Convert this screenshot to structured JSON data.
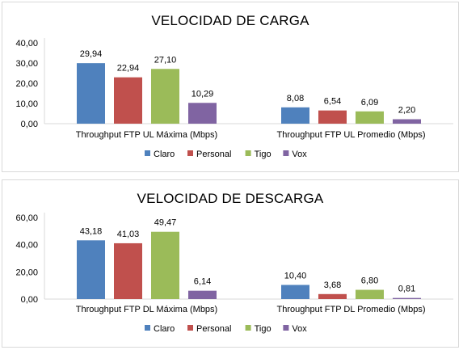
{
  "legend_colors": {
    "Claro": "#4f81bd",
    "Personal": "#c0504d",
    "Tigo": "#9bbb59",
    "Vox": "#8064a2"
  },
  "chart_data": [
    {
      "type": "bar",
      "title": "VELOCIDAD DE CARGA",
      "categories": [
        "Throughput FTP UL Máxima (Mbps)",
        "Throughput FTP UL Promedio (Mbps)"
      ],
      "series": [
        {
          "name": "Claro",
          "values": [
            29.94,
            8.08
          ],
          "labels": [
            "29,94",
            "8,08"
          ]
        },
        {
          "name": "Personal",
          "values": [
            22.94,
            6.54
          ],
          "labels": [
            "22,94",
            "6,54"
          ]
        },
        {
          "name": "Tigo",
          "values": [
            27.1,
            6.09
          ],
          "labels": [
            "27,10",
            "6,09"
          ]
        },
        {
          "name": "Vox",
          "values": [
            10.29,
            2.2
          ],
          "labels": [
            "10,29",
            "2,20"
          ]
        }
      ],
      "ylim": [
        0,
        40
      ],
      "yticks": [
        "0,00",
        "10,00",
        "20,00",
        "30,00",
        "40,00"
      ],
      "ytick_values": [
        0,
        10,
        20,
        30,
        40
      ],
      "legend_position": "bottom",
      "grid": false
    },
    {
      "type": "bar",
      "title": "VELOCIDAD DE DESCARGA",
      "categories": [
        "Throughput FTP DL Máxima (Mbps)",
        "Throughput FTP DL Promedio (Mbps)"
      ],
      "series": [
        {
          "name": "Claro",
          "values": [
            43.18,
            10.4
          ],
          "labels": [
            "43,18",
            "10,40"
          ]
        },
        {
          "name": "Personal",
          "values": [
            41.03,
            3.68
          ],
          "labels": [
            "41,03",
            "3,68"
          ]
        },
        {
          "name": "Tigo",
          "values": [
            49.47,
            6.8
          ],
          "labels": [
            "49,47",
            "6,80"
          ]
        },
        {
          "name": "Vox",
          "values": [
            6.14,
            0.81
          ],
          "labels": [
            "6,14",
            "0,81"
          ]
        }
      ],
      "ylim": [
        0,
        60
      ],
      "yticks": [
        "0,00",
        "20,00",
        "40,00",
        "60,00"
      ],
      "ytick_values": [
        0,
        20,
        40,
        60
      ],
      "legend_position": "bottom",
      "grid": false
    }
  ]
}
